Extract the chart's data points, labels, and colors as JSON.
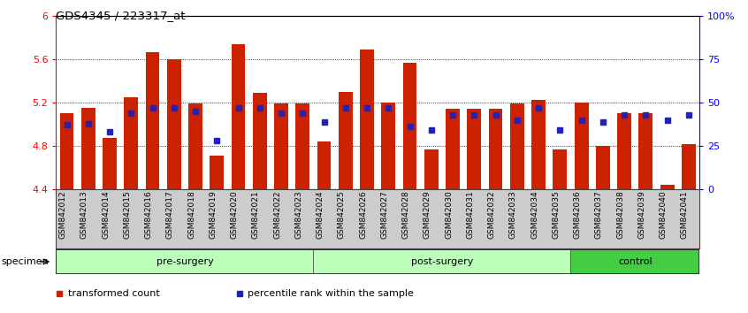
{
  "title": "GDS4345 / 223317_at",
  "categories": [
    "GSM842012",
    "GSM842013",
    "GSM842014",
    "GSM842015",
    "GSM842016",
    "GSM842017",
    "GSM842018",
    "GSM842019",
    "GSM842020",
    "GSM842021",
    "GSM842022",
    "GSM842023",
    "GSM842024",
    "GSM842025",
    "GSM842026",
    "GSM842027",
    "GSM842028",
    "GSM842029",
    "GSM842030",
    "GSM842031",
    "GSM842032",
    "GSM842033",
    "GSM842034",
    "GSM842035",
    "GSM842036",
    "GSM842037",
    "GSM842038",
    "GSM842039",
    "GSM842040",
    "GSM842041"
  ],
  "bar_values": [
    5.1,
    5.15,
    4.87,
    5.25,
    5.66,
    5.6,
    5.19,
    4.71,
    5.74,
    5.29,
    5.19,
    5.19,
    4.84,
    5.3,
    5.69,
    5.2,
    5.57,
    4.77,
    5.14,
    5.14,
    5.14,
    5.19,
    5.22,
    4.77,
    5.2,
    4.8,
    5.1,
    5.1,
    4.44,
    4.82
  ],
  "percentile_values": [
    0.37,
    0.38,
    0.33,
    0.44,
    0.47,
    0.47,
    0.45,
    0.28,
    0.47,
    0.47,
    0.44,
    0.44,
    0.39,
    0.47,
    0.47,
    0.47,
    0.36,
    0.34,
    0.43,
    0.43,
    0.43,
    0.4,
    0.47,
    0.34,
    0.4,
    0.39,
    0.43,
    0.43,
    0.4,
    0.43
  ],
  "groups": [
    {
      "label": "pre-surgery",
      "start": 0,
      "end": 12,
      "color": "#bbffbb"
    },
    {
      "label": "post-surgery",
      "start": 12,
      "end": 24,
      "color": "#bbffbb"
    },
    {
      "label": "control",
      "start": 24,
      "end": 30,
      "color": "#44cc44"
    }
  ],
  "ymin": 4.4,
  "ymax": 6.0,
  "yticks": [
    4.4,
    4.8,
    5.2,
    5.6,
    6.0
  ],
  "ytick_labels": [
    "4.4",
    "4.8",
    "5.2",
    "5.6",
    "6"
  ],
  "y2ticks": [
    0.0,
    0.25,
    0.5,
    0.75,
    1.0
  ],
  "y2tick_labels": [
    "0",
    "25",
    "50",
    "75",
    "100%"
  ],
  "bar_color": "#cc2200",
  "dot_color": "#2222bb",
  "legend_items": [
    "transformed count",
    "percentile rank within the sample"
  ],
  "legend_colors": [
    "#cc2200",
    "#2222bb"
  ],
  "xtick_bg": "#cccccc",
  "group_border_color": "#555555"
}
